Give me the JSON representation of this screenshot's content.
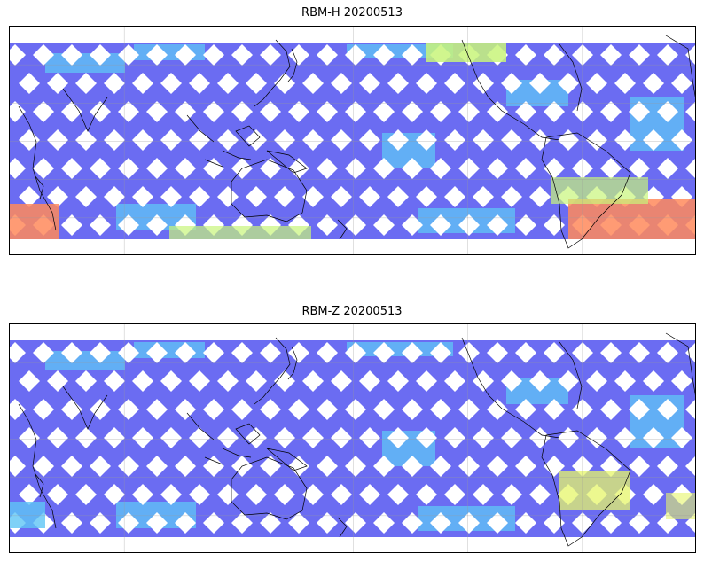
{
  "panels": [
    {
      "title": "RBM-H 20200513",
      "hot_regions": "south",
      "colors": {
        "low": "#6b6cf2",
        "mid": "#5fc6f5",
        "warm": "#c8f57a",
        "hot": "#ff8a5c"
      }
    },
    {
      "title": "RBM-Z 20200513",
      "hot_regions": "none",
      "colors": {
        "low": "#6b6cf2",
        "mid": "#5fc6f5",
        "warm": "#e6f56a",
        "hot": "#ffd25c"
      }
    }
  ]
}
